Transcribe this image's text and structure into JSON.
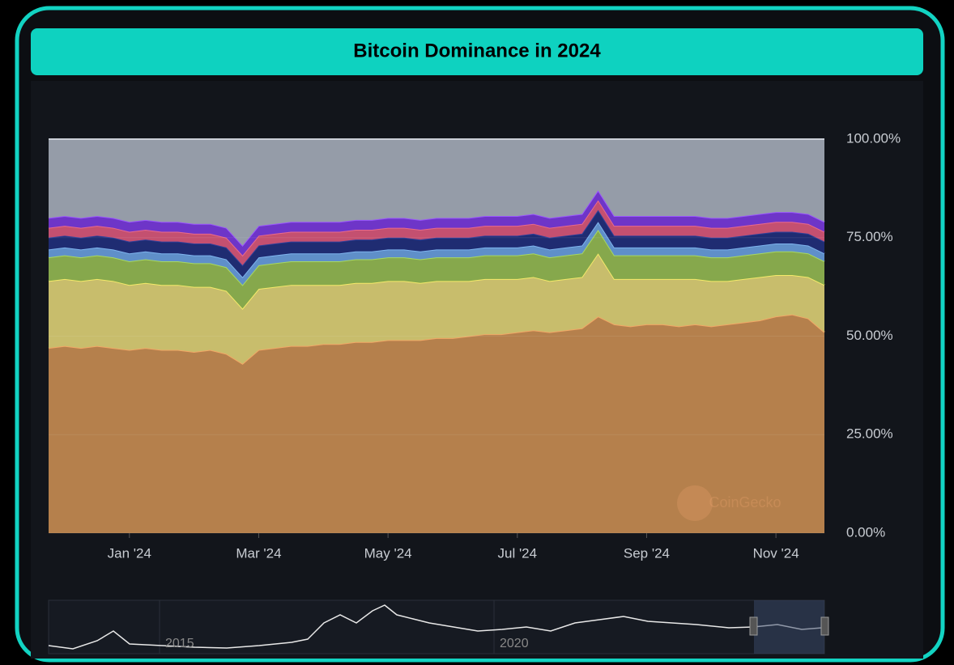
{
  "chart_data": {
    "type": "stacked_area",
    "title": "Bitcoin Dominance in 2024",
    "watermark": "CoinGecko",
    "categories": [
      null,
      null,
      null,
      null,
      null,
      "Jan '24",
      null,
      null,
      null,
      null,
      null,
      null,
      null,
      "Mar '24",
      null,
      null,
      null,
      null,
      null,
      null,
      null,
      "May '24",
      null,
      null,
      null,
      null,
      null,
      null,
      null,
      "Jul '24",
      null,
      null,
      null,
      null,
      null,
      null,
      null,
      "Sep '24",
      null,
      null,
      null,
      null,
      null,
      null,
      null,
      "Nov '24",
      null,
      null,
      null
    ],
    "series": [
      {
        "color": "#b5804c",
        "line": "#f2a766",
        "values": [
          47,
          47.5,
          47,
          47.5,
          47,
          46.5,
          47,
          46.5,
          46.5,
          46,
          46.5,
          45.5,
          43,
          46.5,
          47,
          47.5,
          47.5,
          48,
          48,
          48.5,
          48.5,
          49,
          49,
          49,
          49.5,
          49.5,
          50,
          50.5,
          50.5,
          51,
          51.5,
          51,
          51.5,
          52,
          55,
          53,
          52.5,
          53,
          53,
          52.5,
          53,
          52.5,
          53,
          53.5,
          54,
          55,
          55.5,
          54.5,
          51
        ]
      },
      {
        "color": "#c8bd6c",
        "line": "#f5ea6a",
        "values": [
          17,
          17,
          17,
          17,
          17,
          16.5,
          16.5,
          16.5,
          16.5,
          16.5,
          16,
          16,
          14,
          15.5,
          15.5,
          15.5,
          15.5,
          15,
          15,
          15,
          15,
          15,
          15,
          14.5,
          14.5,
          14.5,
          14,
          14,
          14,
          13.5,
          13.5,
          13,
          13,
          13,
          16,
          11.5,
          12,
          11.5,
          11.5,
          12,
          11.5,
          11.5,
          11,
          11,
          11,
          10.5,
          10,
          10.5,
          12
        ]
      },
      {
        "color": "#86a84c",
        "line": "#a8d860",
        "values": [
          6,
          6,
          6,
          6,
          6,
          6,
          6,
          6,
          6,
          6,
          6,
          6,
          6,
          6,
          6,
          6,
          6,
          6,
          6,
          6,
          6,
          6,
          6,
          6,
          6,
          6,
          6,
          6,
          6,
          6,
          6,
          6,
          6,
          6,
          6,
          6,
          6,
          6,
          6,
          6,
          6,
          6,
          6,
          6,
          6,
          6,
          6,
          6,
          6
        ]
      },
      {
        "color": "#5f8fc9",
        "line": "#7fb4ee",
        "values": [
          2,
          2,
          2,
          2,
          2,
          2,
          2,
          2,
          2,
          2,
          2,
          2,
          2,
          2,
          2,
          2,
          2,
          2,
          2,
          2,
          2,
          2,
          2,
          2,
          2,
          2,
          2,
          2,
          2,
          2,
          2,
          2,
          2,
          2,
          2,
          2,
          2,
          2,
          2,
          2,
          2,
          2,
          2,
          2,
          2,
          2,
          2,
          2,
          2
        ]
      },
      {
        "color": "#1f2c72",
        "line": "#2c3f9a",
        "values": [
          3,
          3,
          3,
          3,
          3,
          3,
          3,
          3,
          3,
          3,
          3,
          3,
          3,
          3,
          3,
          3,
          3,
          3,
          3,
          3,
          3,
          3,
          3,
          3,
          3,
          3,
          3,
          3,
          3,
          3,
          3,
          3,
          3,
          3,
          3,
          3,
          3,
          3,
          3,
          3,
          3,
          3,
          3,
          3,
          3,
          3,
          3,
          3,
          3
        ]
      },
      {
        "color": "#c45070",
        "line": "#e96a8c",
        "values": [
          2.5,
          2.5,
          2.5,
          2.5,
          2.5,
          2.5,
          2.5,
          2.5,
          2.5,
          2.5,
          2.5,
          2.5,
          2.5,
          2.5,
          2.5,
          2.5,
          2.5,
          2.5,
          2.5,
          2.5,
          2.5,
          2.5,
          2.5,
          2.5,
          2.5,
          2.5,
          2.5,
          2.5,
          2.5,
          2.5,
          2.5,
          2.5,
          2.5,
          2.5,
          2.5,
          2.5,
          2.5,
          2.5,
          2.5,
          2.5,
          2.5,
          2.5,
          2.5,
          2.5,
          2.5,
          2.5,
          2.5,
          2.5,
          2.5
        ]
      },
      {
        "color": "#6e35c8",
        "line": "#9a55ff",
        "values": [
          2.5,
          2.5,
          2.5,
          2.5,
          2.5,
          2.5,
          2.5,
          2.5,
          2.5,
          2.5,
          2.5,
          2.5,
          2.5,
          2.5,
          2.5,
          2.5,
          2.5,
          2.5,
          2.5,
          2.5,
          2.5,
          2.5,
          2.5,
          2.5,
          2.5,
          2.5,
          2.5,
          2.5,
          2.5,
          2.5,
          2.5,
          2.5,
          2.5,
          2.5,
          2.5,
          2.5,
          2.5,
          2.5,
          2.5,
          2.5,
          2.5,
          2.5,
          2.5,
          2.5,
          2.5,
          2.5,
          2.5,
          2.5,
          2.5
        ]
      },
      {
        "color": "#959ca8",
        "line": "#c8ccd4",
        "values": [
          20,
          19.5,
          20,
          19.5,
          20,
          21,
          20.5,
          21,
          21,
          21.5,
          21.5,
          22.5,
          27,
          22,
          21.5,
          21,
          21,
          21,
          21,
          20.5,
          20.5,
          20,
          20,
          20.5,
          20,
          20,
          20,
          19.5,
          19.5,
          19.5,
          19,
          20,
          19.5,
          19,
          13,
          19.5,
          19.5,
          19.5,
          19.5,
          19.5,
          19.5,
          20,
          20,
          19.5,
          19,
          18.5,
          18.5,
          19,
          21
        ]
      }
    ],
    "ylim": [
      0,
      100
    ],
    "yticks": [
      {
        "value": 0,
        "label": "0.00%"
      },
      {
        "value": 25,
        "label": "25.00%"
      },
      {
        "value": 50,
        "label": "50.00%"
      },
      {
        "value": 75,
        "label": "75.00%"
      },
      {
        "value": 100,
        "label": "100.00%"
      }
    ],
    "grid": true,
    "navigator": {
      "labels": [
        "2015",
        "2020"
      ]
    }
  }
}
